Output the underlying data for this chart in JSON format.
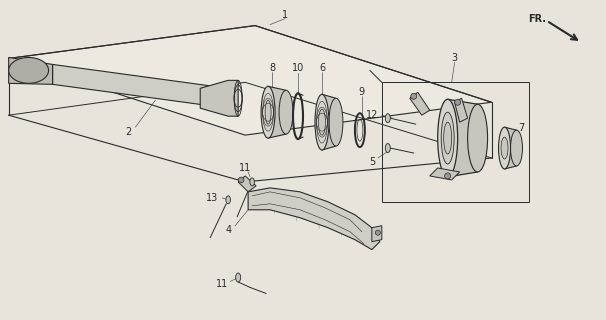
{
  "bg_color": "#e8e4dc",
  "line_color": "#2a2a2a",
  "fill_light": "#d8d4ce",
  "fill_mid": "#c8c4be",
  "fill_dark": "#b8b4ae",
  "figsize": [
    6.06,
    3.2
  ],
  "dpi": 100,
  "label_fs": 7.0
}
